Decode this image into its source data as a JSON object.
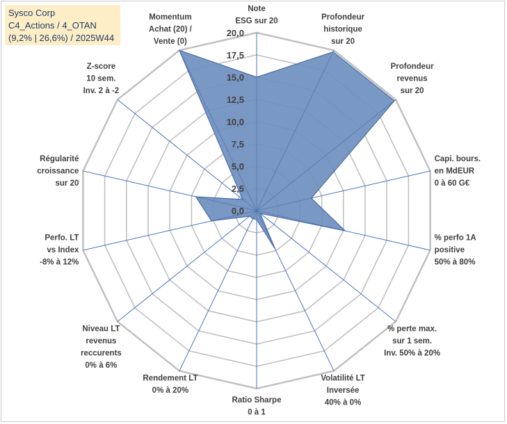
{
  "title": {
    "line1": "Sysco Corp",
    "line2": "C4_Actions / 4_OTAN",
    "line3": "(9,2% | 26,6%) / 2025W44"
  },
  "colors": {
    "fill": "#6f8fbf",
    "stroke": "#4a6da6",
    "grid": "#c0c0c0",
    "spoke": "#4472c4",
    "title_bg": "#fdeec6"
  },
  "chart_data": {
    "type": "radar",
    "title": "Sysco Corp",
    "rlim": [
      0,
      20
    ],
    "ticks": [
      "0,0",
      "2,5",
      "5,0",
      "7,5",
      "10,0",
      "12,5",
      "15,0",
      "17,5",
      "20,0"
    ],
    "axes": [
      {
        "label": [
          "Note",
          "ESG sur 20"
        ],
        "value": 15.0
      },
      {
        "label": [
          "Profondeur",
          "historique",
          "sur 20"
        ],
        "value": 19.8
      },
      {
        "label": [
          "Profondeur",
          "revenus",
          "sur 20"
        ],
        "value": 19.8
      },
      {
        "label": [
          "Capi. bours.",
          "en MdEUR",
          "0 à 60 G€"
        ],
        "value": 6.3
      },
      {
        "label": [
          "% perfo 1A",
          "positive",
          "50% à 80%"
        ],
        "value": 10.2
      },
      {
        "label": [
          "% perte max.",
          "sur 1 sem.",
          "Inv. 50% à 20%"
        ],
        "value": 0.5
      },
      {
        "label": [
          "Volatilité LT",
          "Inversée",
          "40% à 0%"
        ],
        "value": 4.8
      },
      {
        "label": [
          "Ratio Sharpe",
          "0 à 1"
        ],
        "value": 1.0
      },
      {
        "label": [
          "Rendement LT",
          "0% à 20%"
        ],
        "value": 1.0
      },
      {
        "label": [
          "Niveau LT",
          "revenus",
          "reccurents",
          "0% à 6%"
        ],
        "value": 1.0
      },
      {
        "label": [
          "Perfo. LT",
          "vs Index",
          "-8% à 12%"
        ],
        "value": 5.2
      },
      {
        "label": [
          "Régularité",
          "croissance",
          "sur 20"
        ],
        "value": 7.0
      },
      {
        "label": [
          "Z-score",
          "10 sem.",
          "Inv. 2 à -2"
        ],
        "value": 2.0
      },
      {
        "label": [
          "Momentum",
          "Achat (20) /",
          "Vente (0)"
        ],
        "value": 20.0
      }
    ]
  }
}
